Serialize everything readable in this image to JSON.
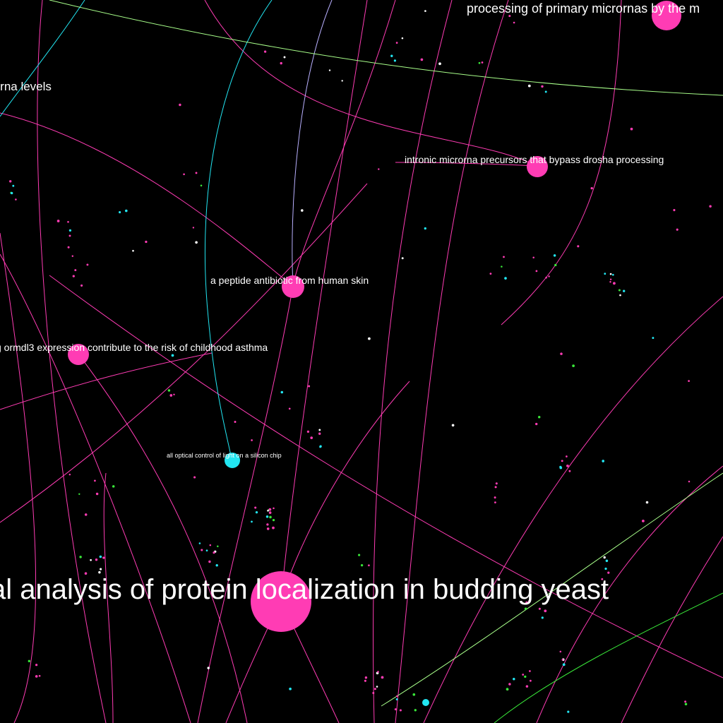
{
  "colors": {
    "background": "#000000",
    "magenta": "#ff3cb4",
    "cyan": "#22e6f2",
    "green": "#39e639",
    "lightgreen": "#a8ff8a",
    "lightblue": "#b9b0ff",
    "label": "#ffffff"
  },
  "nodes": [
    {
      "id": "n-primary-micrornas",
      "label": "processing of primary micrornas by the m",
      "color": "magenta"
    },
    {
      "id": "n-intronic",
      "label": "intronic microrna precursors that bypass drosha processing",
      "color": "magenta"
    },
    {
      "id": "n-peptide",
      "label": "a peptide antibiotic from human skin",
      "color": "magenta"
    },
    {
      "id": "n-ormdl3",
      "label": "g ormdl3 expression contribute to the risk of childhood asthma",
      "color": "magenta"
    },
    {
      "id": "n-optical",
      "label": "all optical control of light on a silicon chip",
      "color": "cyan"
    },
    {
      "id": "n-yeast",
      "label": "al analysis of protein localization in budding yeast",
      "color": "magenta"
    },
    {
      "id": "n-mrna-levels",
      "label": "mrna levels",
      "color": "magenta"
    }
  ]
}
